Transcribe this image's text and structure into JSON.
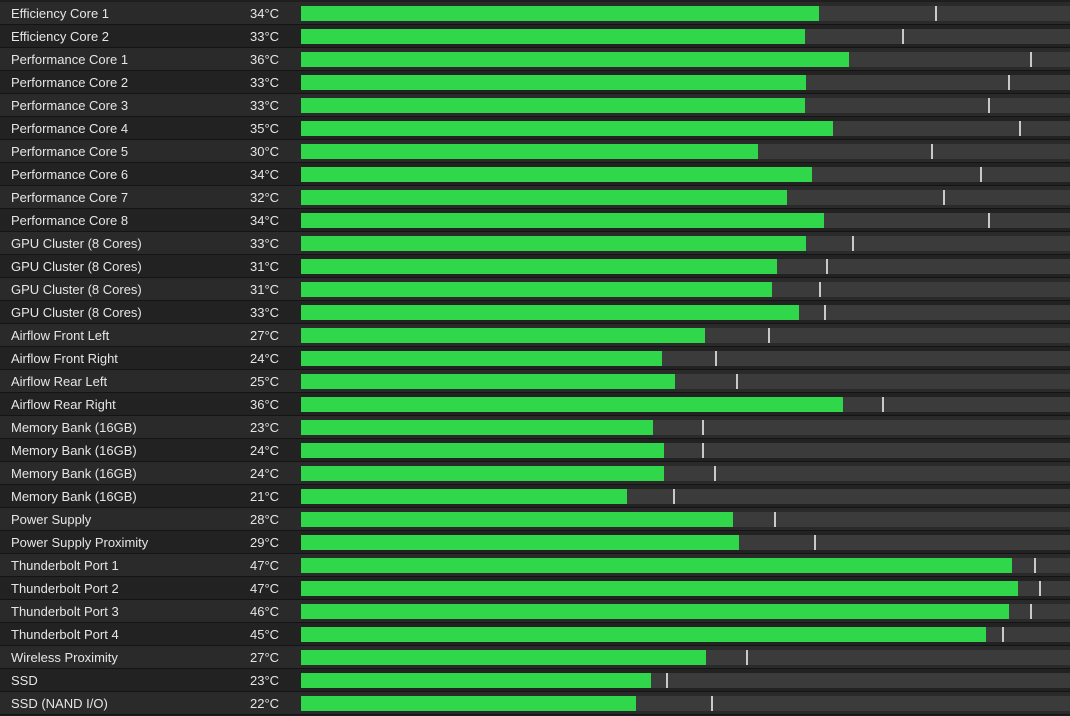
{
  "colors": {
    "bar_fill": "#31d74b",
    "bar_track": "#3b3b3b",
    "marker": "#c9c9c9",
    "text": "#e6e6e6",
    "row_odd": "#2a2a2a",
    "row_even": "#222222"
  },
  "sensors": [
    {
      "name": "Efficiency Core 1",
      "temp": "34°C",
      "fill": 0.674,
      "max": 0.824
    },
    {
      "name": "Efficiency Core 2",
      "temp": "33°C",
      "fill": 0.656,
      "max": 0.782
    },
    {
      "name": "Performance Core 1",
      "temp": "36°C",
      "fill": 0.712,
      "max": 0.948
    },
    {
      "name": "Performance Core 2",
      "temp": "33°C",
      "fill": 0.657,
      "max": 0.92
    },
    {
      "name": "Performance Core 3",
      "temp": "33°C",
      "fill": 0.655,
      "max": 0.894
    },
    {
      "name": "Performance Core 4",
      "temp": "35°C",
      "fill": 0.692,
      "max": 0.934
    },
    {
      "name": "Performance Core 5",
      "temp": "30°C",
      "fill": 0.594,
      "max": 0.819
    },
    {
      "name": "Performance Core 6",
      "temp": "34°C",
      "fill": 0.665,
      "max": 0.883
    },
    {
      "name": "Performance Core 7",
      "temp": "32°C",
      "fill": 0.632,
      "max": 0.835
    },
    {
      "name": "Performance Core 8",
      "temp": "34°C",
      "fill": 0.68,
      "max": 0.894
    },
    {
      "name": "GPU Cluster (8 Cores)",
      "temp": "33°C",
      "fill": 0.657,
      "max": 0.717
    },
    {
      "name": "GPU Cluster (8 Cores)",
      "temp": "31°C",
      "fill": 0.619,
      "max": 0.683
    },
    {
      "name": "GPU Cluster (8 Cores)",
      "temp": "31°C",
      "fill": 0.612,
      "max": 0.674
    },
    {
      "name": "GPU Cluster (8 Cores)",
      "temp": "33°C",
      "fill": 0.647,
      "max": 0.68
    },
    {
      "name": "Airflow Front Left",
      "temp": "27°C",
      "fill": 0.525,
      "max": 0.607
    },
    {
      "name": "Airflow Front Right",
      "temp": "24°C",
      "fill": 0.47,
      "max": 0.538
    },
    {
      "name": "Airflow Rear Left",
      "temp": "25°C",
      "fill": 0.486,
      "max": 0.566
    },
    {
      "name": "Airflow Rear Right",
      "temp": "36°C",
      "fill": 0.705,
      "max": 0.755
    },
    {
      "name": "Memory Bank (16GB)",
      "temp": "23°C",
      "fill": 0.458,
      "max": 0.521
    },
    {
      "name": "Memory Bank (16GB)",
      "temp": "24°C",
      "fill": 0.472,
      "max": 0.521
    },
    {
      "name": "Memory Bank (16GB)",
      "temp": "24°C",
      "fill": 0.472,
      "max": 0.537
    },
    {
      "name": "Memory Bank (16GB)",
      "temp": "21°C",
      "fill": 0.424,
      "max": 0.484
    },
    {
      "name": "Power Supply",
      "temp": "28°C",
      "fill": 0.562,
      "max": 0.615
    },
    {
      "name": "Power Supply Proximity",
      "temp": "29°C",
      "fill": 0.569,
      "max": 0.667
    },
    {
      "name": "Thunderbolt Port 1",
      "temp": "47°C",
      "fill": 0.924,
      "max": 0.953
    },
    {
      "name": "Thunderbolt Port 2",
      "temp": "47°C",
      "fill": 0.932,
      "max": 0.96
    },
    {
      "name": "Thunderbolt Port 3",
      "temp": "46°C",
      "fill": 0.921,
      "max": 0.948
    },
    {
      "name": "Thunderbolt Port 4",
      "temp": "45°C",
      "fill": 0.891,
      "max": 0.911
    },
    {
      "name": "Wireless Proximity",
      "temp": "27°C",
      "fill": 0.527,
      "max": 0.579
    },
    {
      "name": "SSD",
      "temp": "23°C",
      "fill": 0.455,
      "max": 0.475
    },
    {
      "name": "SSD (NAND I/O)",
      "temp": "22°C",
      "fill": 0.436,
      "max": 0.533
    }
  ]
}
